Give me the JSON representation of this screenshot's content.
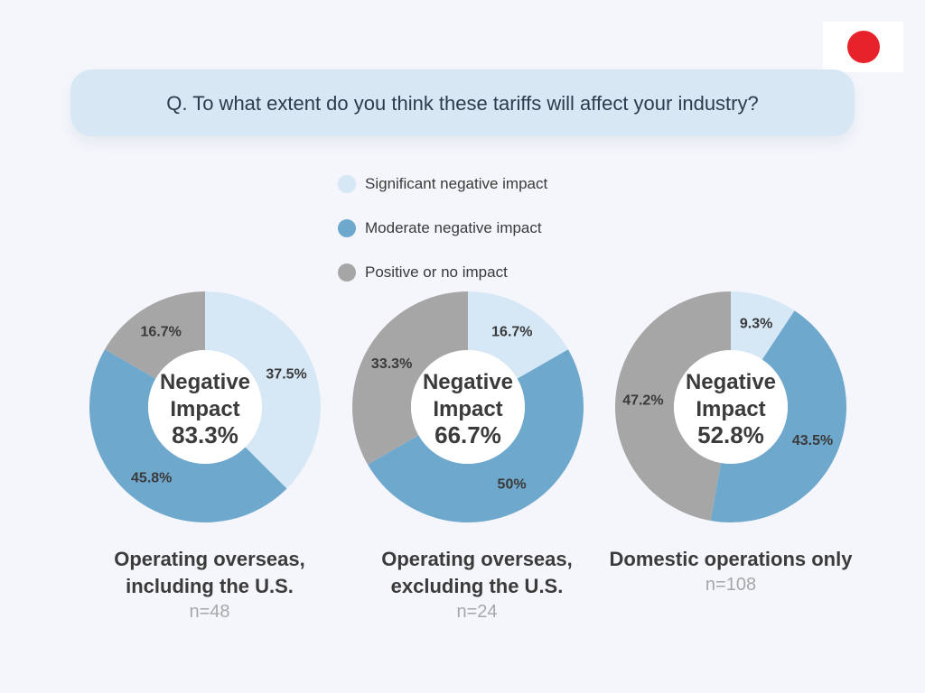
{
  "question": "Q. To what extent do you think these tariffs will affect your industry?",
  "flag": {
    "sun_color": "#e8222b"
  },
  "colors": {
    "significant": "#d6e8f6",
    "moderate": "#6fa8cd",
    "positive": "#a6a6a6"
  },
  "chart_data": {
    "type": "pie",
    "variant": "donut",
    "legend": [
      "Significant negative impact",
      "Moderate negative impact",
      "Positive or no impact"
    ],
    "charts": [
      {
        "category": "Operating overseas, including the U.S.",
        "n": "n=48",
        "center_label": [
          "Negative",
          "Impact"
        ],
        "center_value": "83.3%",
        "values": [
          37.5,
          45.8,
          16.7
        ],
        "labels": [
          "37.5%",
          "45.8%",
          "16.7%"
        ]
      },
      {
        "category": "Operating overseas, excluding the U.S.",
        "n": "n=24",
        "center_label": [
          "Negative",
          "Impact"
        ],
        "center_value": "66.7%",
        "values": [
          16.7,
          50,
          33.3
        ],
        "labels": [
          "16.7%",
          "50%",
          "33.3%"
        ]
      },
      {
        "category": "Domestic operations only",
        "n": "n=108",
        "center_label": [
          "Negative",
          "Impact"
        ],
        "center_value": "52.8%",
        "values": [
          9.3,
          43.5,
          47.2
        ],
        "labels": [
          "9.3%",
          "43.5%",
          "47.2%"
        ]
      }
    ]
  }
}
